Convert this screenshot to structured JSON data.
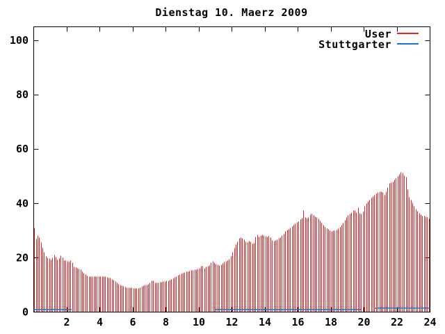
{
  "chart_data": {
    "type": "bar",
    "style": "gnuplot-impulses",
    "title": "Dienstag 10. Maerz 2009",
    "xlabel": "",
    "ylabel": "",
    "xlim": [
      0,
      24
    ],
    "ylim": [
      0,
      105
    ],
    "x_ticks": [
      2,
      4,
      6,
      8,
      10,
      12,
      14,
      16,
      18,
      20,
      22,
      24
    ],
    "y_ticks": [
      0,
      20,
      40,
      60,
      80,
      100
    ],
    "grid": false,
    "legend_position": "top-right-inside",
    "sample_interval_minutes": 6,
    "axis_color": "#000000",
    "background_color": "#ffffff",
    "series": [
      {
        "name": "User",
        "color": "#e62020",
        "style": "impulses",
        "points": [
          [
            0.0,
            32
          ],
          [
            0.05,
            31
          ],
          [
            0.1,
            29
          ],
          [
            0.15,
            27
          ],
          [
            0.2,
            28.5
          ],
          [
            0.3,
            28
          ],
          [
            0.4,
            27
          ],
          [
            0.5,
            24
          ],
          [
            0.6,
            23
          ],
          [
            0.7,
            21
          ],
          [
            0.8,
            20
          ],
          [
            0.9,
            20
          ],
          [
            1.0,
            19.5
          ],
          [
            1.1,
            19
          ],
          [
            1.2,
            21
          ],
          [
            1.3,
            21
          ],
          [
            1.4,
            19.5
          ],
          [
            1.5,
            19
          ],
          [
            1.6,
            20.5
          ],
          [
            1.7,
            21
          ],
          [
            1.8,
            19
          ],
          [
            1.9,
            19
          ],
          [
            2.0,
            19
          ],
          [
            2.1,
            18.5
          ],
          [
            2.2,
            18.5
          ],
          [
            2.3,
            19.5
          ],
          [
            2.4,
            17
          ],
          [
            2.5,
            16.5
          ],
          [
            2.6,
            16.5
          ],
          [
            2.7,
            16
          ],
          [
            2.8,
            16
          ],
          [
            2.9,
            15
          ],
          [
            3.0,
            14.5
          ],
          [
            3.1,
            14
          ],
          [
            3.2,
            13.5
          ],
          [
            3.3,
            13
          ],
          [
            3.5,
            13
          ],
          [
            3.7,
            13
          ],
          [
            3.9,
            13
          ],
          [
            4.1,
            13
          ],
          [
            4.3,
            13
          ],
          [
            4.5,
            12.8
          ],
          [
            4.7,
            12.3
          ],
          [
            4.9,
            11.5
          ],
          [
            5.1,
            10.5
          ],
          [
            5.3,
            9.8
          ],
          [
            5.5,
            9.2
          ],
          [
            5.7,
            9
          ],
          [
            5.9,
            9
          ],
          [
            6.1,
            8.7
          ],
          [
            6.3,
            8.6
          ],
          [
            6.5,
            9.2
          ],
          [
            6.7,
            9.8
          ],
          [
            6.9,
            10.2
          ],
          [
            7.1,
            10.8
          ],
          [
            7.2,
            12
          ],
          [
            7.3,
            10.8
          ],
          [
            7.5,
            10.8
          ],
          [
            7.7,
            11
          ],
          [
            7.9,
            11.3
          ],
          [
            8.1,
            11.5
          ],
          [
            8.3,
            11.8
          ],
          [
            8.5,
            12.5
          ],
          [
            8.7,
            13.3
          ],
          [
            8.9,
            14
          ],
          [
            9.1,
            14.6
          ],
          [
            9.3,
            14.9
          ],
          [
            9.5,
            15.2
          ],
          [
            9.7,
            15.5
          ],
          [
            9.9,
            15.7
          ],
          [
            10.1,
            16.2
          ],
          [
            10.2,
            17.6
          ],
          [
            10.3,
            16
          ],
          [
            10.5,
            16.8
          ],
          [
            10.7,
            17.4
          ],
          [
            10.8,
            19.2
          ],
          [
            10.9,
            18.3
          ],
          [
            11.1,
            17.4
          ],
          [
            11.3,
            17.2
          ],
          [
            11.5,
            18.3
          ],
          [
            11.7,
            18.8
          ],
          [
            11.9,
            19.8
          ],
          [
            12.0,
            21
          ],
          [
            12.1,
            23
          ],
          [
            12.3,
            25.3
          ],
          [
            12.4,
            26.6
          ],
          [
            12.5,
            27.6
          ],
          [
            12.7,
            27
          ],
          [
            12.9,
            25.5
          ],
          [
            13.1,
            26.2
          ],
          [
            13.3,
            24.8
          ],
          [
            13.4,
            26
          ],
          [
            13.5,
            29.5
          ],
          [
            13.6,
            27.5
          ],
          [
            13.7,
            28
          ],
          [
            13.9,
            28.4
          ],
          [
            14.1,
            27.6
          ],
          [
            14.3,
            27.9
          ],
          [
            14.5,
            25.8
          ],
          [
            14.7,
            26.6
          ],
          [
            14.9,
            27.2
          ],
          [
            15.1,
            28.4
          ],
          [
            15.3,
            30
          ],
          [
            15.5,
            30.8
          ],
          [
            15.7,
            31.6
          ],
          [
            15.9,
            32.8
          ],
          [
            16.1,
            33.6
          ],
          [
            16.25,
            34.6
          ],
          [
            16.35,
            37.5
          ],
          [
            16.45,
            34.9
          ],
          [
            16.6,
            34.4
          ],
          [
            16.8,
            36.2
          ],
          [
            17.0,
            35.4
          ],
          [
            17.2,
            34.6
          ],
          [
            17.4,
            33.2
          ],
          [
            17.6,
            31.6
          ],
          [
            17.8,
            30.6
          ],
          [
            18.0,
            29.8
          ],
          [
            18.2,
            29.9
          ],
          [
            18.4,
            30.4
          ],
          [
            18.6,
            31.4
          ],
          [
            18.8,
            33.4
          ],
          [
            19.0,
            35.4
          ],
          [
            19.2,
            36.4
          ],
          [
            19.4,
            37.6
          ],
          [
            19.55,
            36.6
          ],
          [
            19.6,
            40.6
          ],
          [
            19.7,
            36.4
          ],
          [
            19.9,
            36.0
          ],
          [
            20.0,
            38.0
          ],
          [
            20.1,
            39.8
          ],
          [
            20.3,
            40.9
          ],
          [
            20.5,
            42.2
          ],
          [
            20.7,
            43.4
          ],
          [
            20.9,
            44.2
          ],
          [
            21.1,
            44.4
          ],
          [
            21.25,
            43.1
          ],
          [
            21.4,
            44.9
          ],
          [
            21.55,
            47.4
          ],
          [
            21.7,
            47.6
          ],
          [
            21.9,
            48.9
          ],
          [
            22.1,
            50.2
          ],
          [
            22.3,
            51.8
          ],
          [
            22.45,
            50.3
          ],
          [
            22.55,
            49.8
          ],
          [
            22.65,
            45.0
          ],
          [
            22.75,
            42.2
          ],
          [
            22.9,
            40.8
          ],
          [
            23.1,
            38.2
          ],
          [
            23.3,
            36.8
          ],
          [
            23.5,
            35.4
          ],
          [
            23.7,
            35.2
          ],
          [
            23.95,
            34.4
          ]
        ]
      },
      {
        "name": "Stuttgarter",
        "color": "#1874d2",
        "style": "line",
        "segments": [
          [
            0.0,
            2.3,
            1.0
          ],
          [
            10.95,
            19.8,
            1.0
          ],
          [
            20.65,
            24.0,
            1.5
          ]
        ]
      }
    ]
  }
}
